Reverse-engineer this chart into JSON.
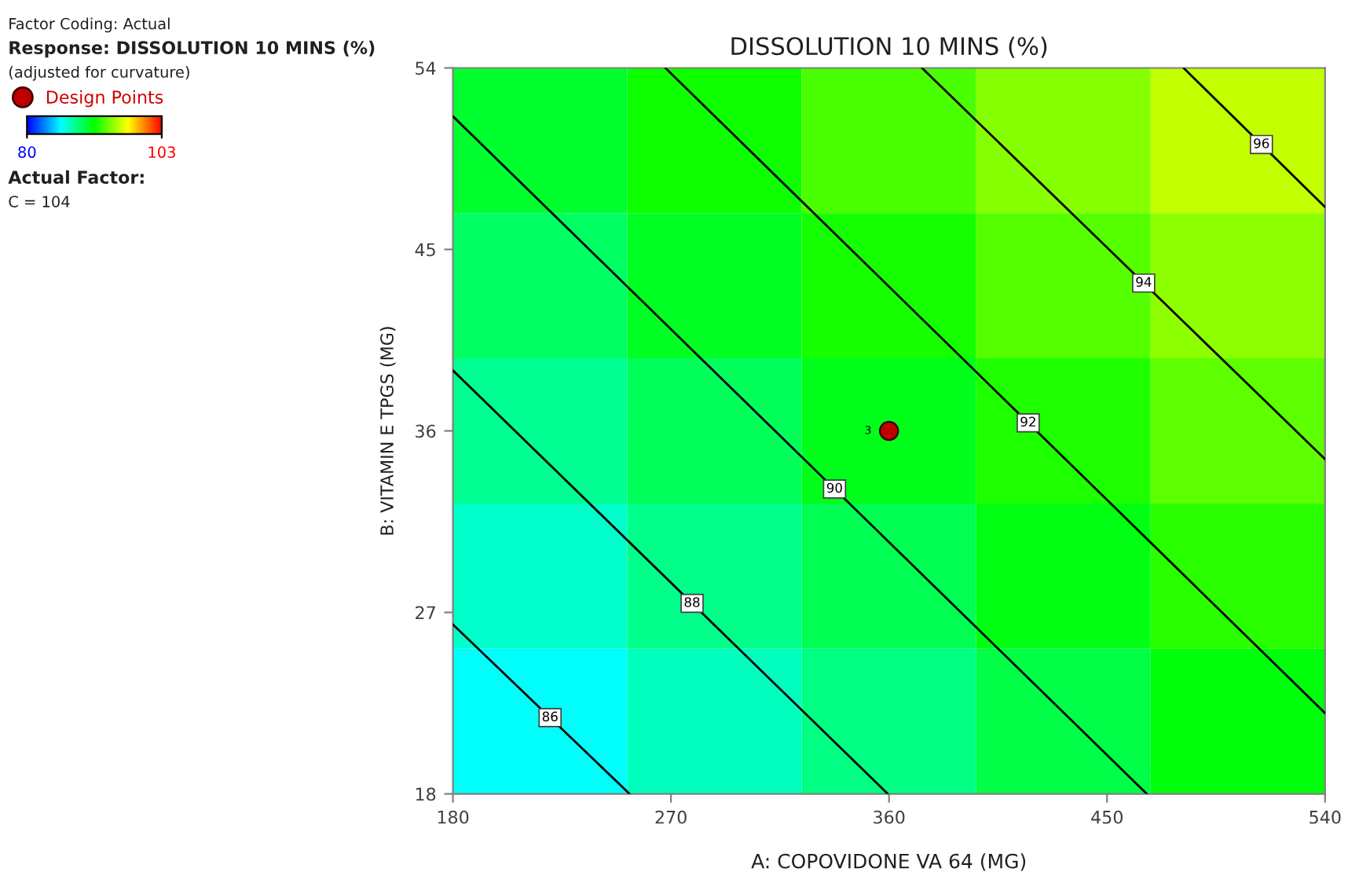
{
  "chart_data": {
    "type": "heatmap",
    "title": "DISSOLUTION 10 MINS (%)",
    "xlabel": "A: COPOVIDONE VA 64 (MG)",
    "ylabel": "B: VITAMIN E TPGS (MG)",
    "xlim": [
      180,
      540
    ],
    "ylim": [
      18,
      54
    ],
    "xticks": [
      180,
      270,
      360,
      450,
      540
    ],
    "yticks": [
      18,
      27,
      36,
      45,
      54
    ],
    "clim": [
      80,
      103
    ],
    "cticks": [
      80,
      103
    ],
    "grid": false,
    "legend": "top left",
    "cells": [
      [
        90.5,
        91.8,
        93.2,
        94.5,
        95.9
      ],
      [
        89.3,
        90.7,
        92.0,
        93.4,
        94.7
      ],
      [
        88.2,
        89.5,
        90.9,
        92.2,
        93.6
      ],
      [
        87.0,
        88.4,
        89.7,
        91.1,
        92.4
      ],
      [
        85.9,
        87.2,
        88.6,
        89.9,
        91.3
      ]
    ],
    "series": [
      {
        "type": "line",
        "name": "86",
        "color": "#000000",
        "x": [
          180,
          252.9
        ],
        "values": [
          26.4,
          18
        ]
      },
      {
        "type": "line",
        "name": "88",
        "color": "#000000",
        "x": [
          180,
          359.5
        ],
        "values": [
          39.0,
          18
        ]
      },
      {
        "type": "line",
        "name": "90",
        "color": "#000000",
        "x": [
          180,
          466.4
        ],
        "values": [
          51.6,
          18
        ]
      },
      {
        "type": "line",
        "name": "92",
        "color": "#000000",
        "x": [
          267.7,
          540
        ],
        "values": [
          54,
          22.0
        ]
      },
      {
        "type": "line",
        "name": "94",
        "color": "#000000",
        "x": [
          373.6,
          540
        ],
        "values": [
          54,
          34.6
        ]
      },
      {
        "type": "line",
        "name": "96",
        "color": "#000000",
        "x": [
          481.6,
          540
        ],
        "values": [
          54,
          47.1
        ]
      },
      {
        "type": "scatter",
        "name": "Design Points",
        "color": "#c00000",
        "marker": "circle",
        "x": [
          360
        ],
        "values": [
          36
        ]
      }
    ],
    "annotations": [
      "Factor Coding: Actual",
      "Response: DISSOLUTION 10 MINS (%)",
      "(adjusted for curvature)",
      "Actual Factor:",
      "C = 104",
      {
        "text": "3",
        "x": 360,
        "y": 36
      }
    ]
  }
}
